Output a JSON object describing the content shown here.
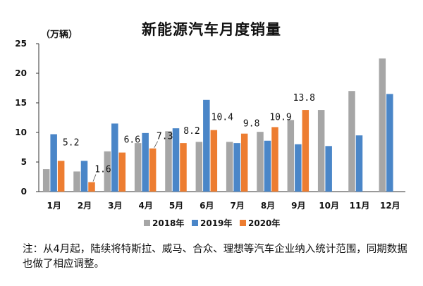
{
  "chart_data": {
    "type": "bar",
    "title": "新能源汽车月度销量",
    "unit_label": "（万辆）",
    "categories": [
      "1月",
      "2月",
      "3月",
      "4月",
      "5月",
      "6月",
      "7月",
      "8月",
      "9月",
      "10月",
      "11月",
      "12月"
    ],
    "series": [
      {
        "name": "2018年",
        "color": "#a6a6a6",
        "values": [
          3.8,
          3.4,
          6.8,
          8.2,
          10.2,
          8.4,
          8.4,
          10.1,
          12.1,
          13.8,
          17.0,
          22.5
        ]
      },
      {
        "name": "2019年",
        "color": "#4a86c8",
        "values": [
          9.7,
          5.2,
          11.5,
          9.9,
          10.7,
          15.5,
          8.2,
          8.6,
          8.0,
          7.7,
          9.5,
          16.5
        ]
      },
      {
        "name": "2020年",
        "color": "#ed7d31",
        "values": [
          5.2,
          1.6,
          6.6,
          7.3,
          8.2,
          10.4,
          9.8,
          10.9,
          13.8,
          null,
          null,
          null
        ]
      }
    ],
    "data_labels": [
      "5.2",
      "1.6",
      "6.6",
      "7.3",
      "8.2",
      "10.4",
      "9.8",
      "10.9",
      "13.8"
    ],
    "ylim": [
      0,
      25
    ],
    "yticks": [
      0,
      5,
      10,
      15,
      20,
      25
    ],
    "grid": false,
    "legend": "bottom"
  },
  "note": "注：从4月起，陆续将特斯拉、威马、合众、理想等汽车企业纳入统计范围，同期数据也做了相应调整。"
}
